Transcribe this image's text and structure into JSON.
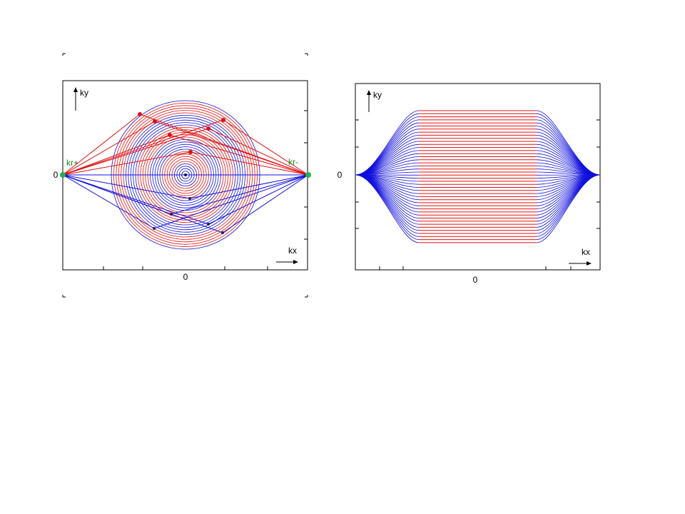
{
  "left": {
    "y_axis_label": "ky",
    "x_axis_label": "kx",
    "origin_y": "0",
    "origin_x": "0",
    "point_left": "kr+",
    "point_right": "kr-"
  },
  "right": {
    "y_axis_label": "ky",
    "x_axis_label": "kx",
    "origin_y": "0",
    "origin_x": "0"
  }
}
